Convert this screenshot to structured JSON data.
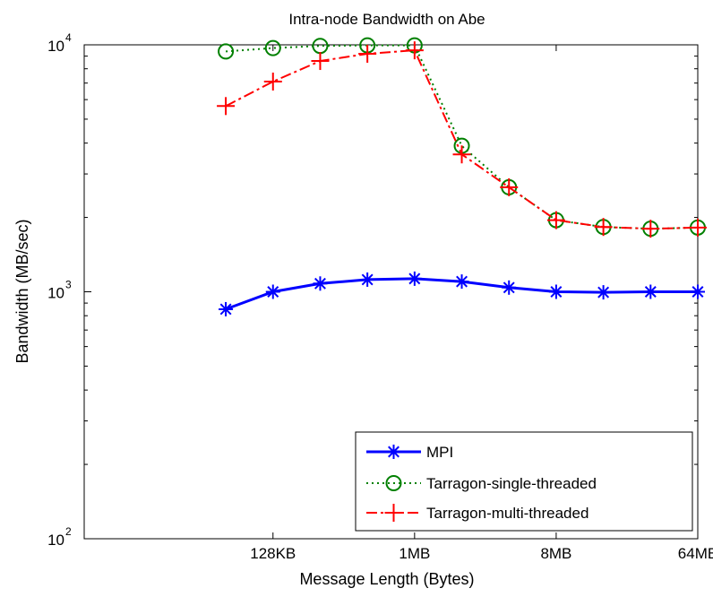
{
  "chart_data": {
    "type": "line",
    "title": "Intra-node Bandwidth on Abe",
    "xlabel": "Message Length (Bytes)",
    "ylabel": "Bandwidth (MB/sec)",
    "x_scale": "log2",
    "y_scale": "log10",
    "xlim_bytes": [
      8192,
      67108864
    ],
    "ylim": [
      100,
      10000
    ],
    "x_ticks": [
      {
        "bytes": 131072,
        "label": "128KB"
      },
      {
        "bytes": 1048576,
        "label": "1MB"
      },
      {
        "bytes": 8388608,
        "label": "8MB"
      },
      {
        "bytes": 67108864,
        "label": "64MB"
      }
    ],
    "y_ticks": [
      {
        "value": 100,
        "base": "10",
        "exp": "2"
      },
      {
        "value": 1000,
        "base": "10",
        "exp": "3"
      },
      {
        "value": 10000,
        "base": "10",
        "exp": "4"
      }
    ],
    "x_bytes": [
      65536,
      131072,
      262144,
      524288,
      1048576,
      2097152,
      4194304,
      8388608,
      16777216,
      33554432,
      67108864
    ],
    "series": [
      {
        "name": "MPI",
        "color": "#0000ff",
        "line_style": "solid",
        "marker": "asterisk",
        "values": [
          850,
          1000,
          1080,
          1120,
          1130,
          1100,
          1040,
          1000,
          995,
          1000,
          1000
        ]
      },
      {
        "name": "Tarragon-single-threaded",
        "color": "#008000",
        "line_style": "dotted",
        "marker": "circle",
        "values": [
          9400,
          9700,
          9900,
          9950,
          9950,
          3900,
          2650,
          1950,
          1830,
          1800,
          1820
        ]
      },
      {
        "name": "Tarragon-multi-threaded",
        "color": "#ff0000",
        "line_style": "dashdot",
        "marker": "plus",
        "values": [
          5650,
          7100,
          8600,
          9200,
          9500,
          3600,
          2650,
          1950,
          1830,
          1800,
          1820
        ]
      }
    ],
    "legend_position": "bottom-right",
    "grid": false
  }
}
